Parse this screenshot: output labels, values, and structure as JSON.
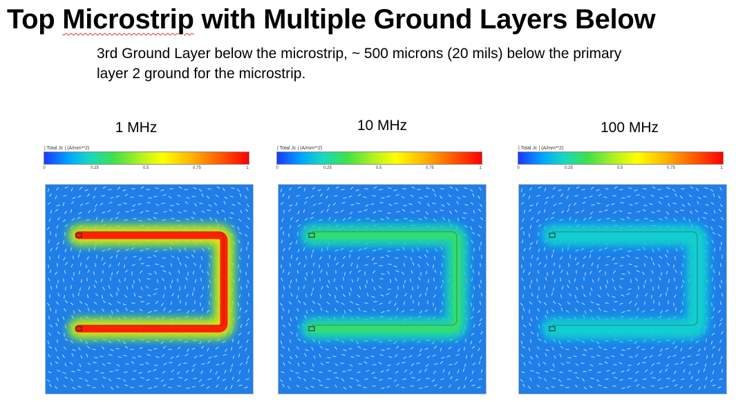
{
  "slide": {
    "title_word_1": "Top",
    "title_word_2": "Microstrip",
    "title_rest": "with Multiple Ground Layers Below",
    "subtitle": "3rd Ground Layer below the microstrip, ~ 500 microns (20 mils) below the primary layer 2 ground for the microstrip."
  },
  "legend": {
    "title": "| Total Jc | (A/mm**2)",
    "ticks": [
      "0",
      "0.25",
      "0.5",
      "0.75",
      "1"
    ]
  },
  "panels": [
    {
      "frequency": "1 MHz",
      "trace_level": 0.95
    },
    {
      "frequency": "10 MHz",
      "trace_level": 0.3
    },
    {
      "frequency": "100 MHz",
      "trace_level": 0.2
    }
  ],
  "colors": {
    "background_field": "#1f7ee8",
    "cbar_low": "#1a38ff",
    "cbar_high": "#ff0000"
  }
}
